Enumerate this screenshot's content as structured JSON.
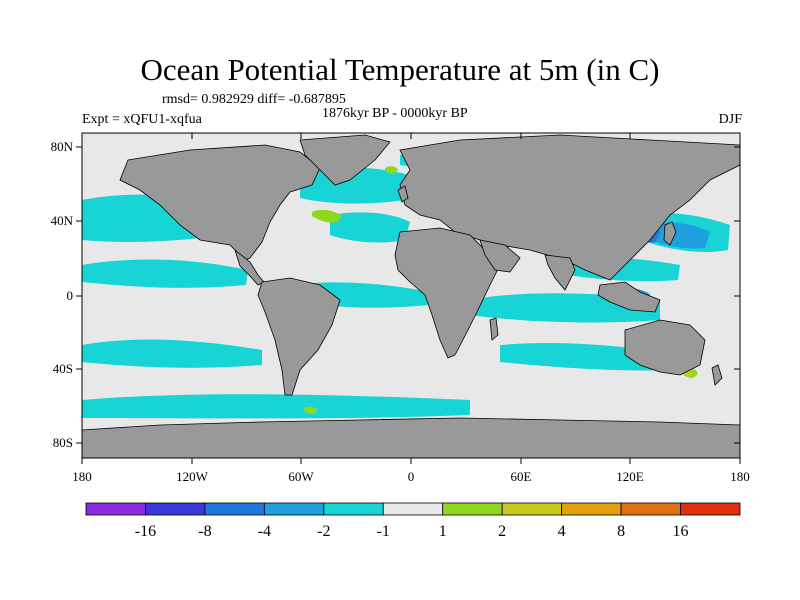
{
  "figure": {
    "title": "Ocean Potential Temperature at 5m (in C)",
    "stats": "rmsd= 0.982929 diff= -0.687895",
    "period": "1876kyr BP - 0000kyr BP",
    "experiment": "Expt = xQFU1-xqfua",
    "season": "DJF"
  },
  "axes": {
    "lat_ticks": [
      "80N",
      "40N",
      "0",
      "40S",
      "80S"
    ],
    "lon_ticks": [
      "180",
      "120W",
      "60W",
      "0",
      "60E",
      "120E",
      "180"
    ]
  },
  "colorbar": {
    "colors": [
      "#8a2be2",
      "#3a3ad8",
      "#1e78e0",
      "#1ea0e0",
      "#18d4d4",
      "#e8e8e8",
      "#8ed81e",
      "#c8c81e",
      "#e0a010",
      "#e07010",
      "#e03010"
    ],
    "labels": [
      "-16",
      "-8",
      "-4",
      "-2",
      "-1",
      "1",
      "2",
      "4",
      "8",
      "16"
    ]
  },
  "map_colors": {
    "ocean": "#e8e8e8",
    "land": "#999999",
    "cooling_weak": "#18d4d4",
    "cooling_moderate": "#1ea0e0",
    "cooling_strong": "#1e78e0",
    "cooling_severe": "#3a3ad8",
    "warming_weak": "#8ed81e",
    "warming_moderate": "#c8c81e"
  }
}
